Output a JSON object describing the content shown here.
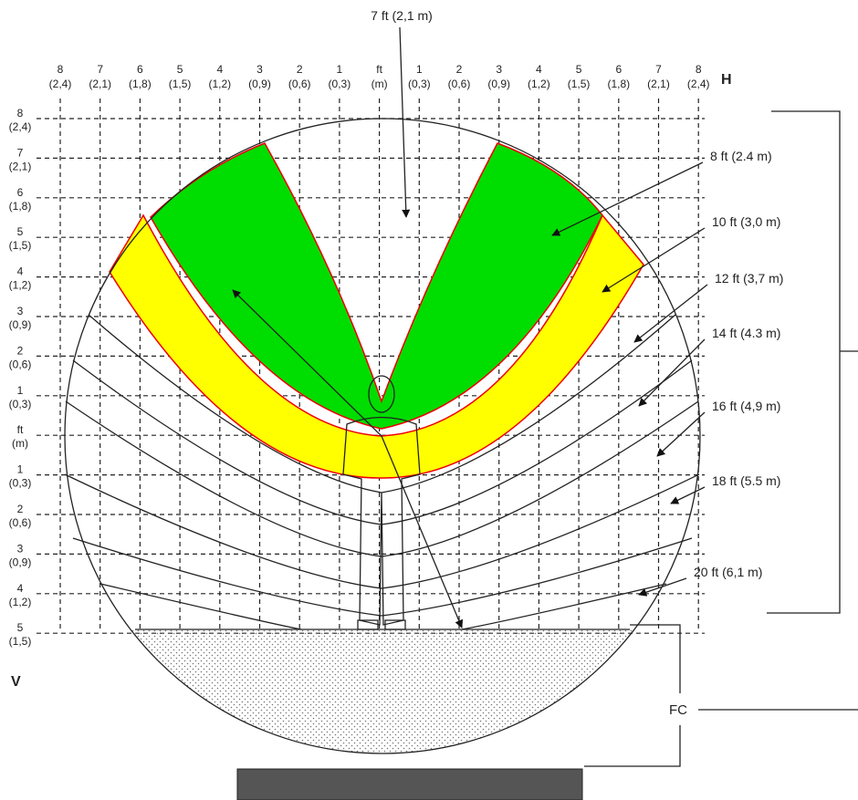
{
  "title": "7 ft (2,1 m)",
  "h_axis": {
    "label": "H",
    "ticks": [
      {
        "ft": "8",
        "m": "(2,4)"
      },
      {
        "ft": "7",
        "m": "(2,1)"
      },
      {
        "ft": "6",
        "m": "(1,8)"
      },
      {
        "ft": "5",
        "m": "(1,5)"
      },
      {
        "ft": "4",
        "m": "(1,2)"
      },
      {
        "ft": "3",
        "m": "(0,9)"
      },
      {
        "ft": "2",
        "m": "(0,6)"
      },
      {
        "ft": "1",
        "m": "(0,3)"
      },
      {
        "ft": "ft",
        "m": "(m)"
      },
      {
        "ft": "1",
        "m": "(0,3)"
      },
      {
        "ft": "2",
        "m": "(0,6)"
      },
      {
        "ft": "3",
        "m": "(0,9)"
      },
      {
        "ft": "4",
        "m": "(1,2)"
      },
      {
        "ft": "5",
        "m": "(1,5)"
      },
      {
        "ft": "6",
        "m": "(1,8)"
      },
      {
        "ft": "7",
        "m": "(2,1)"
      },
      {
        "ft": "8",
        "m": "(2,4)"
      }
    ]
  },
  "v_axis": {
    "label": "V",
    "ticks": [
      {
        "ft": "8",
        "m": "(2,4)"
      },
      {
        "ft": "7",
        "m": "(2,1)"
      },
      {
        "ft": "6",
        "m": "(1,8)"
      },
      {
        "ft": "5",
        "m": "(1,5)"
      },
      {
        "ft": "4",
        "m": "(1,2)"
      },
      {
        "ft": "3",
        "m": "(0,9)"
      },
      {
        "ft": "2",
        "m": "(0,6)"
      },
      {
        "ft": "1",
        "m": "(0,3)"
      },
      {
        "ft": "ft",
        "m": "(m)"
      },
      {
        "ft": "1",
        "m": "(0,3)"
      },
      {
        "ft": "2",
        "m": "(0,6)"
      },
      {
        "ft": "3",
        "m": "(0,9)"
      },
      {
        "ft": "4",
        "m": "(1,2)"
      },
      {
        "ft": "5",
        "m": "(1,5)"
      }
    ]
  },
  "callouts": [
    "8 ft (2.4 m)",
    "10 ft (3,0 m)",
    "12 ft (3,7 m)",
    "14 ft (4.3 m)",
    "16 ft (4,9 m)",
    "18 ft (5.5 m)",
    "20 ft (6,1 m)"
  ],
  "fc_label": "FC"
}
